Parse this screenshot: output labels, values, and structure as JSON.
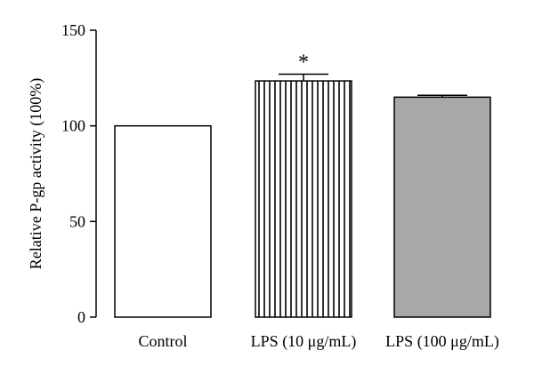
{
  "chart_data": {
    "type": "bar",
    "title": "",
    "xlabel": "",
    "ylabel": "Relative P-gp activity (100%)",
    "ylim": [
      0,
      150
    ],
    "yticks": [
      0,
      50,
      100,
      150
    ],
    "grid": false,
    "categories": [
      "Control",
      "LPS (10 μg/mL)",
      "LPS (100 μg/mL)"
    ],
    "values": [
      100,
      123.5,
      115
    ],
    "errors": [
      0,
      3.5,
      1
    ],
    "fills": [
      "white",
      "vertical-stripes",
      "#a8a8a8"
    ],
    "annotations": [
      "",
      "*",
      ""
    ]
  }
}
